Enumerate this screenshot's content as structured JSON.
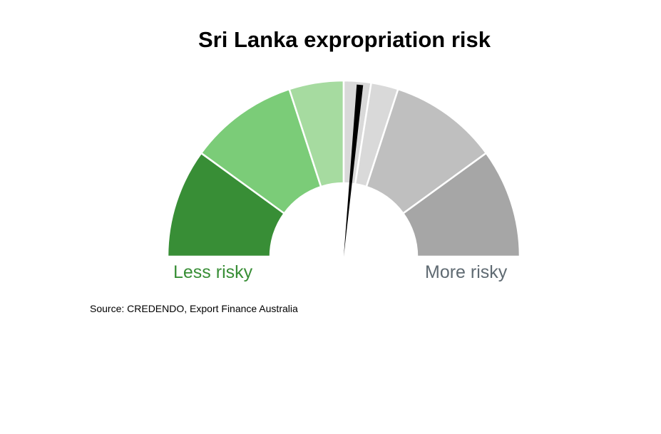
{
  "chart_data": {
    "type": "gauge",
    "title": "Sri Lanka expropriation risk",
    "scale_label_left": "Less risky",
    "scale_label_right": "More risky",
    "segments": [
      {
        "color": "#388E36"
      },
      {
        "color": "#7BCC78"
      },
      {
        "color": "#A6DBA0"
      },
      {
        "color": "#D9D9D9"
      },
      {
        "color": "#D9D9D9"
      },
      {
        "color": "#BFBFBF"
      },
      {
        "color": "#A6A6A6"
      }
    ],
    "segment_spans": [
      1,
      1,
      0.5,
      0.25,
      0.25,
      1,
      1
    ],
    "indicator_value": 0.53,
    "needle_color": "#000000",
    "colors": {
      "less_label": "#388E36",
      "more_label": "#5F6A72"
    }
  },
  "source": "Source: CREDENDO, Export Finance Australia"
}
